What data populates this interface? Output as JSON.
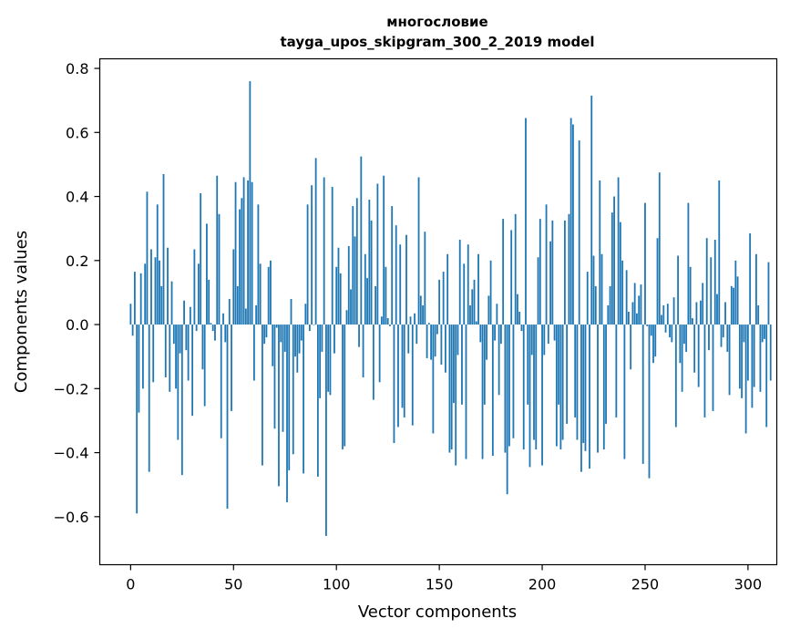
{
  "chart_data": {
    "type": "bar",
    "title_line1": "многословие",
    "title_line2": "tayga_upos_skipgram_300_2_2019 model",
    "xlabel": "Vector components",
    "ylabel": "Components values",
    "xlim": [
      -15,
      314
    ],
    "ylim": [
      -0.75,
      0.83
    ],
    "x_ticks": [
      0,
      50,
      100,
      150,
      200,
      250,
      300
    ],
    "x_tick_labels": [
      "0",
      "50",
      "100",
      "150",
      "200",
      "250",
      "300"
    ],
    "y_ticks": [
      -0.6,
      -0.4,
      -0.2,
      0.0,
      0.2,
      0.4,
      0.6,
      0.8
    ],
    "y_tick_labels": [
      "−0.6",
      "−0.4",
      "−0.2",
      "0.0",
      "0.2",
      "0.4",
      "0.6",
      "0.8"
    ],
    "bar_color": "#1f77b4",
    "grid": false,
    "values": [
      0.065,
      -0.035,
      0.165,
      -0.59,
      -0.275,
      0.16,
      -0.2,
      0.19,
      0.415,
      -0.46,
      0.235,
      -0.18,
      0.21,
      0.375,
      0.2,
      0.12,
      0.47,
      -0.165,
      0.24,
      -0.21,
      0.135,
      -0.06,
      -0.2,
      -0.36,
      -0.09,
      -0.47,
      0.075,
      -0.08,
      -0.175,
      0.055,
      -0.285,
      0.235,
      -0.02,
      0.19,
      0.41,
      -0.14,
      -0.255,
      0.315,
      0.14,
      0.005,
      -0.02,
      -0.05,
      0.465,
      0.345,
      -0.355,
      0.035,
      -0.055,
      -0.575,
      0.08,
      -0.27,
      0.235,
      0.445,
      0.12,
      0.36,
      0.395,
      0.46,
      0.05,
      0.45,
      0.76,
      0.445,
      -0.175,
      0.06,
      0.375,
      0.19,
      -0.44,
      -0.06,
      -0.04,
      0.18,
      0.2,
      -0.13,
      -0.325,
      -0.01,
      -0.505,
      -0.055,
      -0.335,
      -0.085,
      -0.555,
      -0.455,
      0.08,
      -0.405,
      -0.1,
      -0.15,
      -0.09,
      -0.05,
      -0.465,
      0.065,
      0.375,
      -0.02,
      0.435,
      0.0,
      0.52,
      -0.475,
      -0.23,
      -0.085,
      0.46,
      -0.66,
      -0.21,
      -0.22,
      0.43,
      -0.09,
      0.18,
      0.24,
      0.16,
      -0.39,
      -0.38,
      0.045,
      0.245,
      0.11,
      0.37,
      0.275,
      0.395,
      -0.07,
      0.525,
      -0.165,
      0.22,
      0.145,
      0.39,
      0.325,
      -0.235,
      0.12,
      0.44,
      -0.18,
      0.025,
      0.465,
      0.18,
      0.02,
      -0.005,
      0.37,
      -0.37,
      0.31,
      -0.32,
      0.25,
      -0.26,
      -0.29,
      0.28,
      -0.09,
      0.025,
      -0.315,
      0.035,
      -0.06,
      0.46,
      0.09,
      0.06,
      0.29,
      -0.105,
      0.005,
      -0.11,
      -0.34,
      -0.1,
      -0.03,
      0.14,
      -0.125,
      0.165,
      -0.15,
      0.22,
      -0.4,
      -0.39,
      -0.245,
      -0.44,
      -0.095,
      0.265,
      -0.25,
      0.19,
      -0.42,
      0.25,
      0.06,
      0.11,
      0.14,
      0.01,
      0.22,
      -0.055,
      -0.42,
      -0.25,
      -0.11,
      0.09,
      0.2,
      -0.41,
      -0.05,
      0.065,
      -0.22,
      -0.06,
      0.33,
      -0.4,
      -0.53,
      -0.38,
      0.295,
      -0.355,
      0.345,
      0.095,
      0.04,
      -0.02,
      -0.39,
      0.645,
      -0.25,
      -0.445,
      -0.095,
      -0.36,
      -0.39,
      0.21,
      0.33,
      -0.44,
      -0.095,
      0.375,
      -0.06,
      0.26,
      0.325,
      -0.05,
      -0.38,
      -0.25,
      -0.39,
      -0.36,
      0.325,
      -0.31,
      0.345,
      0.645,
      0.625,
      -0.29,
      -0.36,
      0.575,
      -0.46,
      -0.37,
      -0.395,
      0.165,
      -0.45,
      0.715,
      0.215,
      0.12,
      -0.4,
      0.45,
      0.22,
      -0.39,
      -0.31,
      0.06,
      0.12,
      0.35,
      0.4,
      -0.29,
      0.46,
      0.32,
      0.2,
      -0.42,
      0.17,
      0.04,
      -0.14,
      0.07,
      0.13,
      0.035,
      0.09,
      0.125,
      -0.435,
      0.38,
      -0.005,
      -0.48,
      -0.035,
      -0.12,
      -0.1,
      0.27,
      0.475,
      0.03,
      0.06,
      -0.025,
      0.065,
      -0.04,
      -0.055,
      0.085,
      -0.32,
      0.215,
      -0.12,
      -0.21,
      -0.06,
      -0.085,
      0.38,
      0.18,
      0.02,
      -0.15,
      0.07,
      -0.195,
      0.075,
      0.13,
      -0.29,
      0.27,
      -0.08,
      0.21,
      -0.27,
      0.265,
      0.095,
      0.45,
      -0.07,
      -0.04,
      0.07,
      -0.085,
      -0.22,
      0.12,
      0.115,
      0.2,
      0.15,
      -0.2,
      -0.23,
      -0.055,
      -0.34,
      -0.175,
      0.285,
      -0.26,
      -0.195,
      0.22,
      0.06,
      -0.21,
      -0.055,
      -0.045,
      -0.32,
      0.195,
      -0.175
    ]
  }
}
